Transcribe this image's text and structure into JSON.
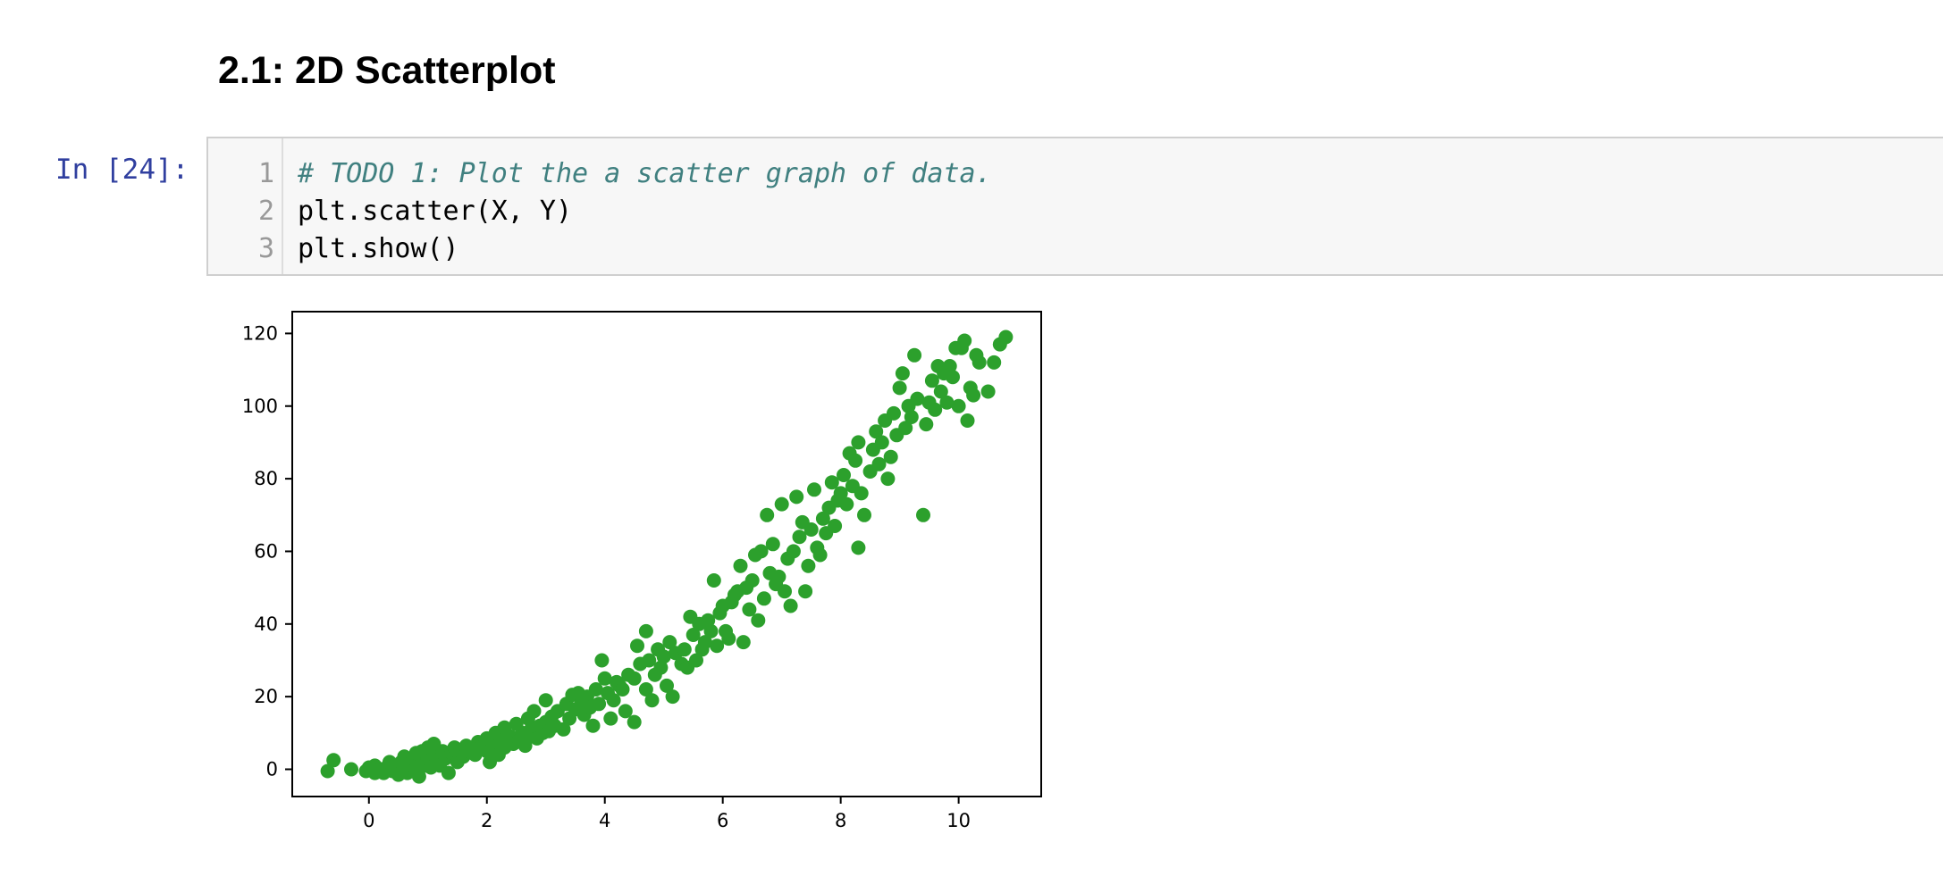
{
  "markdown": {
    "heading": "2.1: 2D Scatterplot"
  },
  "cell": {
    "prompt": "In [24]:",
    "lines": [
      {
        "number": "1",
        "text": "# TODO 1: Plot the a scatter graph of data.",
        "type": "comment"
      },
      {
        "number": "2",
        "text": "plt.scatter(X, Y)",
        "type": "code"
      },
      {
        "number": "3",
        "text": "plt.show()",
        "type": "code"
      }
    ]
  },
  "chart_data": {
    "type": "scatter",
    "title": "",
    "xlabel": "",
    "ylabel": "",
    "xlim": [
      -1.3,
      11.4
    ],
    "ylim": [
      -7.5,
      126
    ],
    "x_ticks": [
      0,
      2,
      4,
      6,
      8,
      10
    ],
    "y_ticks": [
      0,
      20,
      40,
      60,
      80,
      100,
      120
    ],
    "grid": false,
    "color": "#2ca02c",
    "points": [
      [
        -0.7,
        -0.5
      ],
      [
        -0.6,
        2.5
      ],
      [
        -0.3,
        0
      ],
      [
        -0.05,
        -0.5
      ],
      [
        0.0,
        0.5
      ],
      [
        0.1,
        -1
      ],
      [
        0.1,
        1
      ],
      [
        0.2,
        0
      ],
      [
        0.25,
        -1
      ],
      [
        0.3,
        0.5
      ],
      [
        0.35,
        2
      ],
      [
        0.4,
        -0.5
      ],
      [
        0.45,
        1
      ],
      [
        0.5,
        0
      ],
      [
        0.5,
        -1.5
      ],
      [
        0.55,
        2
      ],
      [
        0.6,
        0.5
      ],
      [
        0.6,
        3.5
      ],
      [
        0.65,
        -1
      ],
      [
        0.7,
        1.5
      ],
      [
        0.75,
        3
      ],
      [
        0.8,
        0
      ],
      [
        0.8,
        4.5
      ],
      [
        0.85,
        -2
      ],
      [
        0.9,
        2
      ],
      [
        0.9,
        5
      ],
      [
        0.95,
        1
      ],
      [
        1.0,
        3
      ],
      [
        1.0,
        6
      ],
      [
        1.05,
        0.5
      ],
      [
        1.1,
        4
      ],
      [
        1.1,
        7
      ],
      [
        1.15,
        2.5
      ],
      [
        1.2,
        1
      ],
      [
        1.25,
        5
      ],
      [
        1.3,
        3
      ],
      [
        1.35,
        -1
      ],
      [
        1.4,
        4.5
      ],
      [
        1.45,
        6
      ],
      [
        1.5,
        2
      ],
      [
        1.55,
        5
      ],
      [
        1.6,
        3.5
      ],
      [
        1.65,
        6.5
      ],
      [
        1.7,
        5
      ],
      [
        1.8,
        4
      ],
      [
        1.85,
        7.5
      ],
      [
        1.9,
        6
      ],
      [
        2.0,
        5
      ],
      [
        2.0,
        8.5
      ],
      [
        2.05,
        2
      ],
      [
        2.1,
        7
      ],
      [
        2.15,
        10
      ],
      [
        2.2,
        4
      ],
      [
        2.25,
        8
      ],
      [
        2.3,
        11.5
      ],
      [
        2.3,
        6
      ],
      [
        2.4,
        9
      ],
      [
        2.45,
        7
      ],
      [
        2.5,
        12.5
      ],
      [
        2.55,
        8
      ],
      [
        2.6,
        10
      ],
      [
        2.65,
        6.5
      ],
      [
        2.7,
        14
      ],
      [
        2.7,
        9
      ],
      [
        2.75,
        11
      ],
      [
        2.8,
        16
      ],
      [
        2.85,
        8.5
      ],
      [
        2.9,
        12
      ],
      [
        2.95,
        10
      ],
      [
        3.0,
        13
      ],
      [
        3.0,
        19
      ],
      [
        3.05,
        10.5
      ],
      [
        3.1,
        14.5
      ],
      [
        3.15,
        12
      ],
      [
        3.2,
        16
      ],
      [
        3.3,
        11
      ],
      [
        3.35,
        18
      ],
      [
        3.4,
        14
      ],
      [
        3.45,
        20.5
      ],
      [
        3.5,
        16.5
      ],
      [
        3.55,
        21
      ],
      [
        3.6,
        18
      ],
      [
        3.65,
        15
      ],
      [
        3.7,
        20
      ],
      [
        3.75,
        17
      ],
      [
        3.8,
        12
      ],
      [
        3.85,
        22
      ],
      [
        3.9,
        18
      ],
      [
        3.95,
        30
      ],
      [
        4.0,
        25
      ],
      [
        4.05,
        21
      ],
      [
        4.1,
        14
      ],
      [
        4.15,
        19
      ],
      [
        4.2,
        24
      ],
      [
        4.25,
        23
      ],
      [
        4.3,
        22
      ],
      [
        4.35,
        16
      ],
      [
        4.4,
        26
      ],
      [
        4.5,
        25
      ],
      [
        4.5,
        13
      ],
      [
        4.55,
        34
      ],
      [
        4.6,
        29
      ],
      [
        4.7,
        38
      ],
      [
        4.7,
        22
      ],
      [
        4.75,
        30
      ],
      [
        4.8,
        19
      ],
      [
        4.85,
        26
      ],
      [
        4.9,
        33
      ],
      [
        4.95,
        28
      ],
      [
        5.0,
        31
      ],
      [
        5.05,
        23
      ],
      [
        5.1,
        35
      ],
      [
        5.15,
        20
      ],
      [
        5.2,
        32
      ],
      [
        5.3,
        29
      ],
      [
        5.35,
        33
      ],
      [
        5.4,
        28
      ],
      [
        5.45,
        42
      ],
      [
        5.5,
        37
      ],
      [
        5.55,
        30
      ],
      [
        5.6,
        40
      ],
      [
        5.65,
        33
      ],
      [
        5.7,
        35
      ],
      [
        5.75,
        41
      ],
      [
        5.8,
        38
      ],
      [
        5.85,
        52
      ],
      [
        5.9,
        34
      ],
      [
        5.95,
        43
      ],
      [
        6.0,
        45
      ],
      [
        6.05,
        38
      ],
      [
        6.1,
        36
      ],
      [
        6.15,
        46
      ],
      [
        6.2,
        48
      ],
      [
        6.25,
        49
      ],
      [
        6.3,
        56
      ],
      [
        6.35,
        35
      ],
      [
        6.4,
        50
      ],
      [
        6.45,
        44
      ],
      [
        6.5,
        52
      ],
      [
        6.55,
        59
      ],
      [
        6.6,
        41
      ],
      [
        6.65,
        60
      ],
      [
        6.7,
        47
      ],
      [
        6.75,
        70
      ],
      [
        6.8,
        54
      ],
      [
        6.85,
        62
      ],
      [
        6.9,
        51
      ],
      [
        6.95,
        53
      ],
      [
        7.0,
        73
      ],
      [
        7.05,
        49
      ],
      [
        7.1,
        58
      ],
      [
        7.15,
        45
      ],
      [
        7.2,
        60
      ],
      [
        7.25,
        75
      ],
      [
        7.3,
        64
      ],
      [
        7.35,
        68
      ],
      [
        7.4,
        49
      ],
      [
        7.45,
        56
      ],
      [
        7.5,
        66
      ],
      [
        7.55,
        77
      ],
      [
        7.6,
        61
      ],
      [
        7.65,
        59
      ],
      [
        7.7,
        69
      ],
      [
        7.75,
        65
      ],
      [
        7.8,
        72
      ],
      [
        7.85,
        79
      ],
      [
        7.9,
        67
      ],
      [
        7.95,
        74
      ],
      [
        8.0,
        76
      ],
      [
        8.05,
        81
      ],
      [
        8.1,
        73
      ],
      [
        8.15,
        87
      ],
      [
        8.2,
        78
      ],
      [
        8.25,
        85
      ],
      [
        8.3,
        90
      ],
      [
        8.3,
        61
      ],
      [
        8.35,
        76
      ],
      [
        8.4,
        70
      ],
      [
        8.5,
        82
      ],
      [
        8.55,
        88
      ],
      [
        8.6,
        93
      ],
      [
        8.65,
        84
      ],
      [
        8.7,
        90
      ],
      [
        8.75,
        96
      ],
      [
        8.8,
        80
      ],
      [
        8.85,
        86
      ],
      [
        8.9,
        98
      ],
      [
        8.95,
        92
      ],
      [
        9.0,
        105
      ],
      [
        9.05,
        109
      ],
      [
        9.1,
        94
      ],
      [
        9.15,
        100
      ],
      [
        9.2,
        97
      ],
      [
        9.25,
        114
      ],
      [
        9.3,
        102
      ],
      [
        9.4,
        70
      ],
      [
        9.45,
        95
      ],
      [
        9.5,
        101
      ],
      [
        9.55,
        107
      ],
      [
        9.6,
        99
      ],
      [
        9.65,
        111
      ],
      [
        9.7,
        104
      ],
      [
        9.75,
        109
      ],
      [
        9.8,
        101
      ],
      [
        9.85,
        111
      ],
      [
        9.9,
        108
      ],
      [
        9.95,
        116
      ],
      [
        10.0,
        100
      ],
      [
        10.05,
        116
      ],
      [
        10.1,
        118
      ],
      [
        10.15,
        96
      ],
      [
        10.2,
        105
      ],
      [
        10.25,
        103
      ],
      [
        10.3,
        114
      ],
      [
        10.35,
        112
      ],
      [
        10.5,
        104
      ],
      [
        10.6,
        112
      ],
      [
        10.7,
        117
      ],
      [
        10.8,
        119
      ]
    ]
  }
}
